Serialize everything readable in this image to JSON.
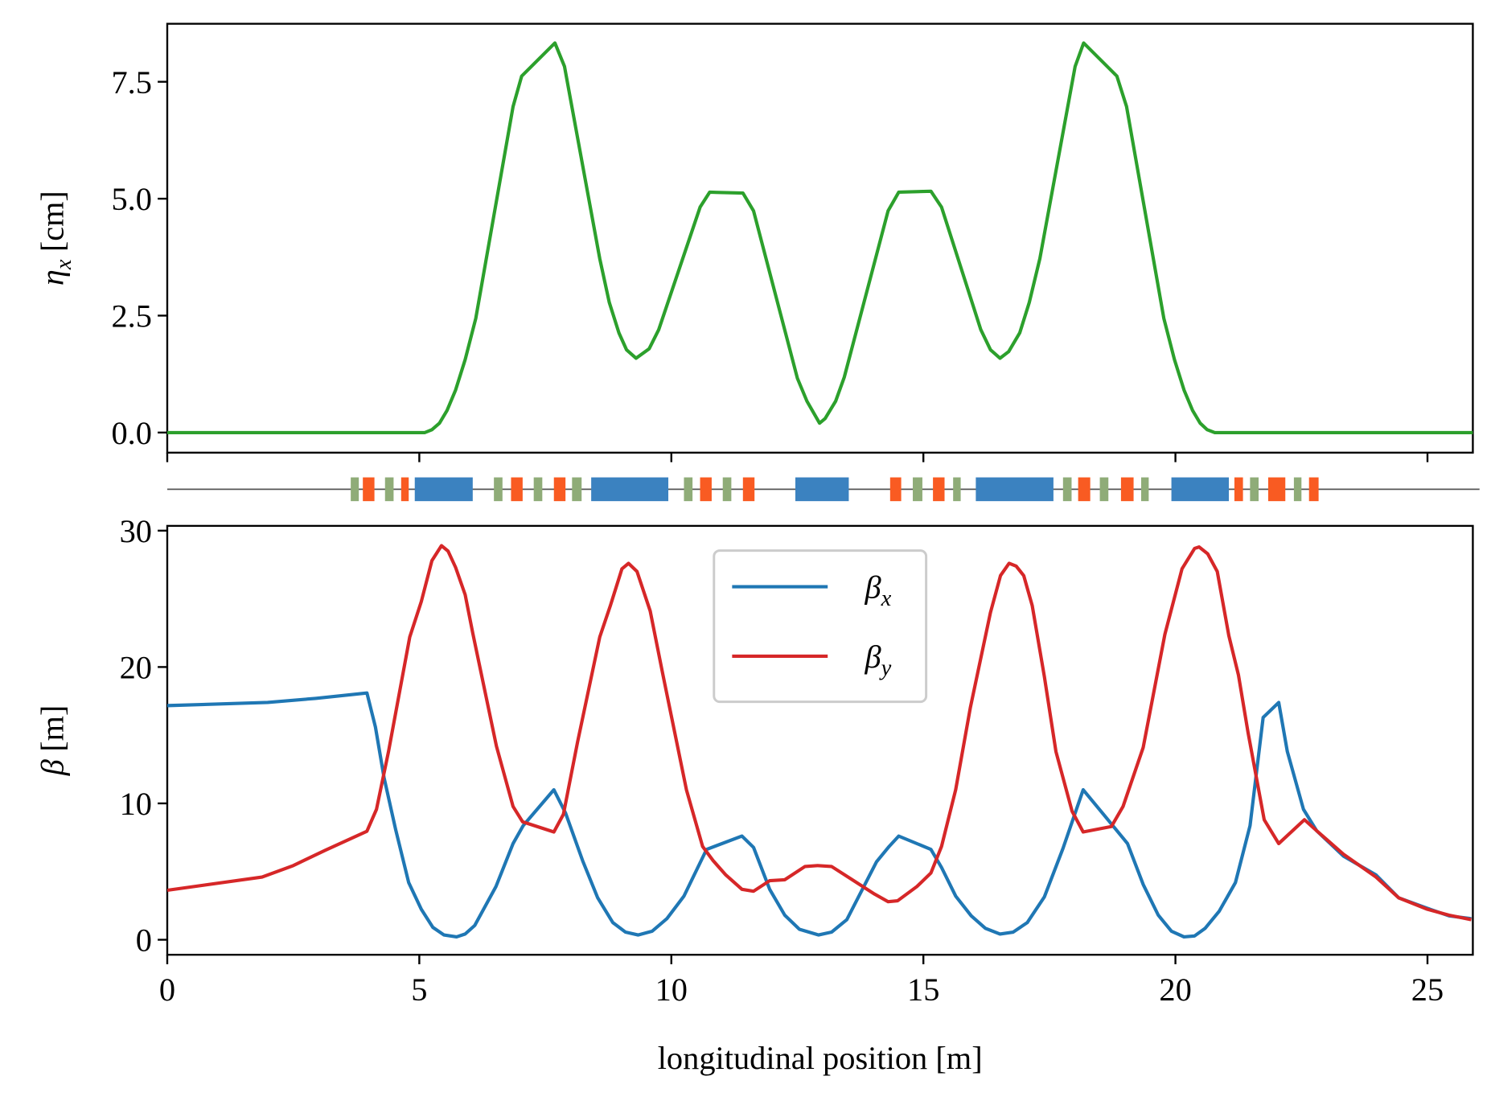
{
  "chart_data": [
    {
      "type": "line",
      "ylabel": {
        "text": "η",
        "sub": "x",
        "unit": "[cm]"
      },
      "xlim": [
        0,
        25.9
      ],
      "ylim": [
        -0.43,
        8.74
      ],
      "xticks": [
        0,
        5,
        10,
        15,
        20,
        25
      ],
      "yticks": [
        {
          "value": 0,
          "label": "0.0"
        },
        2.5,
        {
          "value": 5,
          "label": "5.0"
        },
        7.5
      ],
      "series": [
        {
          "color": "#2ca02c",
          "x": [
            0,
            5.11,
            5.25,
            5.4,
            5.55,
            5.72,
            5.91,
            6.12,
            6.86,
            7.03,
            7.69,
            7.88,
            8.58,
            8.77,
            8.96,
            9.11,
            9.3,
            9.56,
            9.75,
            10.57,
            10.76,
            11.42,
            11.63,
            12.5,
            12.69,
            12.94,
            13.05,
            13.26,
            13.43,
            14.3,
            14.51,
            15.15,
            15.36,
            16.14,
            16.33,
            16.52,
            16.69,
            16.91,
            17.1,
            17.31,
            18.01,
            18.18,
            18.84,
            19.03,
            19.77,
            19.98,
            20.17,
            20.34,
            20.49,
            20.63,
            20.78,
            25.9
          ],
          "values": [
            0,
            0,
            0.06,
            0.2,
            0.47,
            0.91,
            1.56,
            2.44,
            6.97,
            7.62,
            8.33,
            7.83,
            3.72,
            2.78,
            2.13,
            1.77,
            1.59,
            1.79,
            2.2,
            4.82,
            5.14,
            5.12,
            4.74,
            1.16,
            0.67,
            0.2,
            0.3,
            0.67,
            1.18,
            4.74,
            5.14,
            5.16,
            4.82,
            2.2,
            1.77,
            1.59,
            1.73,
            2.13,
            2.78,
            3.72,
            7.83,
            8.33,
            7.62,
            6.97,
            2.44,
            1.56,
            0.91,
            0.47,
            0.2,
            0.06,
            0,
            0
          ]
        }
      ]
    },
    {
      "type": "lattice",
      "elements": [
        {
          "s": [
            3.64,
            3.8
          ],
          "color": "#8fac78"
        },
        {
          "s": [
            3.88,
            4.11
          ],
          "color": "#f95b22"
        },
        {
          "s": [
            4.32,
            4.49
          ],
          "color": "#8fac78"
        },
        {
          "s": [
            4.64,
            4.79
          ],
          "color": "#f95b22"
        },
        {
          "s": [
            4.91,
            6.06
          ],
          "color": "#3b82c0"
        },
        {
          "s": [
            6.48,
            6.65
          ],
          "color": "#8fac78"
        },
        {
          "s": [
            6.82,
            7.05
          ],
          "color": "#f95b22"
        },
        {
          "s": [
            7.27,
            7.44
          ],
          "color": "#8fac78"
        },
        {
          "s": [
            7.67,
            7.9
          ],
          "color": "#f95b22"
        },
        {
          "s": [
            8.03,
            8.22
          ],
          "color": "#8fac78"
        },
        {
          "s": [
            8.41,
            9.94
          ],
          "color": "#3b82c0"
        },
        {
          "s": [
            10.25,
            10.42
          ],
          "color": "#8fac78"
        },
        {
          "s": [
            10.57,
            10.8
          ],
          "color": "#f95b22"
        },
        {
          "s": [
            11.02,
            11.19
          ],
          "color": "#8fac78"
        },
        {
          "s": [
            11.42,
            11.65
          ],
          "color": "#f95b22"
        },
        {
          "s": [
            12.46,
            13.52
          ],
          "color": "#3b82c0"
        },
        {
          "s": [
            14.34,
            14.56
          ],
          "color": "#f95b22"
        },
        {
          "s": [
            14.79,
            14.98
          ],
          "color": "#8fac78"
        },
        {
          "s": [
            15.19,
            15.42
          ],
          "color": "#f95b22"
        },
        {
          "s": [
            15.59,
            15.74
          ],
          "color": "#8fac78"
        },
        {
          "s": [
            16.04,
            17.58
          ],
          "color": "#3b82c0"
        },
        {
          "s": [
            17.77,
            17.94
          ],
          "color": "#8fac78"
        },
        {
          "s": [
            18.07,
            18.31
          ],
          "color": "#f95b22"
        },
        {
          "s": [
            18.5,
            18.67
          ],
          "color": "#8fac78"
        },
        {
          "s": [
            18.92,
            19.17
          ],
          "color": "#f95b22"
        },
        {
          "s": [
            19.32,
            19.47
          ],
          "color": "#8fac78"
        },
        {
          "s": [
            19.92,
            21.06
          ],
          "color": "#3b82c0"
        },
        {
          "s": [
            21.17,
            21.34
          ],
          "color": "#f95b22"
        },
        {
          "s": [
            21.48,
            21.65
          ],
          "color": "#8fac78"
        },
        {
          "s": [
            21.84,
            22.18
          ],
          "color": "#f95b22"
        },
        {
          "s": [
            22.35,
            22.5
          ],
          "color": "#8fac78"
        },
        {
          "s": [
            22.65,
            22.84
          ],
          "color": "#f95b22"
        }
      ]
    },
    {
      "type": "line",
      "xlabel": "longitudinal position [m]",
      "ylabel": {
        "text": "β",
        "unit": "[m]"
      },
      "xlim": [
        0,
        25.9
      ],
      "ylim": [
        -1.1,
        30.35
      ],
      "xticks": [
        0,
        5,
        10,
        15,
        20,
        25
      ],
      "yticks": [
        0,
        10,
        20,
        30
      ],
      "legend": "upper center",
      "series": [
        {
          "name": "β",
          "sub": "x",
          "color": "#1f77b4",
          "x": [
            0,
            1.99,
            2.94,
            3.96,
            4.13,
            4.3,
            4.53,
            4.79,
            5.04,
            5.27,
            5.49,
            5.74,
            5.91,
            6.1,
            6.52,
            6.86,
            7.06,
            7.67,
            7.9,
            8.24,
            8.54,
            8.84,
            9.09,
            9.34,
            9.62,
            9.91,
            10.25,
            10.7,
            11.4,
            11.63,
            11.95,
            12.25,
            12.54,
            12.92,
            13.18,
            13.48,
            14.07,
            14.32,
            14.51,
            15.15,
            15.36,
            15.64,
            15.95,
            16.23,
            16.52,
            16.78,
            17.06,
            17.4,
            17.77,
            18.17,
            18.66,
            19.05,
            19.36,
            19.66,
            19.92,
            20.17,
            20.38,
            20.59,
            20.87,
            21.19,
            21.48,
            21.74,
            22.05,
            22.22,
            22.54,
            22.8,
            23.33,
            23.98,
            24.43,
            25.0,
            25.43,
            25.87
          ],
          "values": [
            17.17,
            17.4,
            17.7,
            18.1,
            15.6,
            11.9,
            8.1,
            4.19,
            2.23,
            0.91,
            0.35,
            0.21,
            0.42,
            1.05,
            3.9,
            7.05,
            8.37,
            11.0,
            9.3,
            5.8,
            3.07,
            1.26,
            0.56,
            0.35,
            0.63,
            1.54,
            3.2,
            6.63,
            7.6,
            6.77,
            3.7,
            1.8,
            0.77,
            0.35,
            0.56,
            1.47,
            5.72,
            6.84,
            7.6,
            6.63,
            5.3,
            3.2,
            1.75,
            0.84,
            0.42,
            0.56,
            1.26,
            3.14,
            6.7,
            11.0,
            8.8,
            7.05,
            4.05,
            1.8,
            0.63,
            0.21,
            0.28,
            0.84,
            2.1,
            4.19,
            8.37,
            16.3,
            17.4,
            13.8,
            9.56,
            8.0,
            6.14,
            4.75,
            3.07,
            2.3,
            1.75,
            1.54
          ]
        },
        {
          "name": "β",
          "sub": "y",
          "color": "#d62728",
          "x": [
            0,
            1.88,
            2.5,
            3.13,
            3.96,
            4.15,
            4.39,
            4.81,
            5.04,
            5.25,
            5.44,
            5.57,
            5.72,
            5.91,
            6.06,
            6.53,
            6.86,
            7.05,
            7.67,
            7.86,
            8.14,
            8.58,
            8.79,
            9.02,
            9.15,
            9.32,
            9.58,
            9.83,
            10.3,
            10.62,
            10.83,
            11.08,
            11.4,
            11.63,
            11.95,
            12.25,
            12.65,
            12.9,
            13.18,
            13.56,
            14.03,
            14.3,
            14.49,
            14.87,
            15.15,
            15.36,
            15.64,
            15.93,
            16.33,
            16.53,
            16.7,
            16.84,
            16.99,
            17.16,
            17.4,
            17.63,
            17.95,
            18.17,
            18.73,
            18.96,
            19.36,
            19.79,
            20.13,
            20.38,
            20.47,
            20.64,
            20.83,
            21.06,
            21.25,
            21.44,
            21.76,
            22.05,
            22.56,
            22.8,
            23.33,
            23.98,
            24.43,
            25.0,
            25.43,
            25.87
          ],
          "values": [
            3.63,
            4.6,
            5.44,
            6.56,
            7.96,
            9.56,
            13.8,
            22.2,
            24.8,
            27.8,
            28.9,
            28.5,
            27.3,
            25.3,
            22.5,
            14.2,
            9.77,
            8.65,
            7.9,
            9.2,
            14.5,
            22.2,
            24.5,
            27.2,
            27.6,
            27.0,
            24.1,
            19.5,
            11.0,
            6.84,
            5.8,
            4.75,
            3.7,
            3.56,
            4.33,
            4.4,
            5.37,
            5.44,
            5.37,
            4.47,
            3.35,
            2.79,
            2.86,
            3.9,
            4.9,
            6.84,
            11.0,
            17.0,
            24.0,
            26.7,
            27.6,
            27.4,
            26.7,
            24.5,
            19.3,
            13.8,
            9.42,
            7.9,
            8.3,
            9.77,
            14.1,
            22.4,
            27.2,
            28.7,
            28.8,
            28.3,
            27.0,
            22.3,
            19.4,
            15.2,
            8.8,
            7.05,
            8.8,
            8.0,
            6.28,
            4.6,
            3.07,
            2.23,
            1.8,
            1.47
          ]
        }
      ]
    }
  ]
}
